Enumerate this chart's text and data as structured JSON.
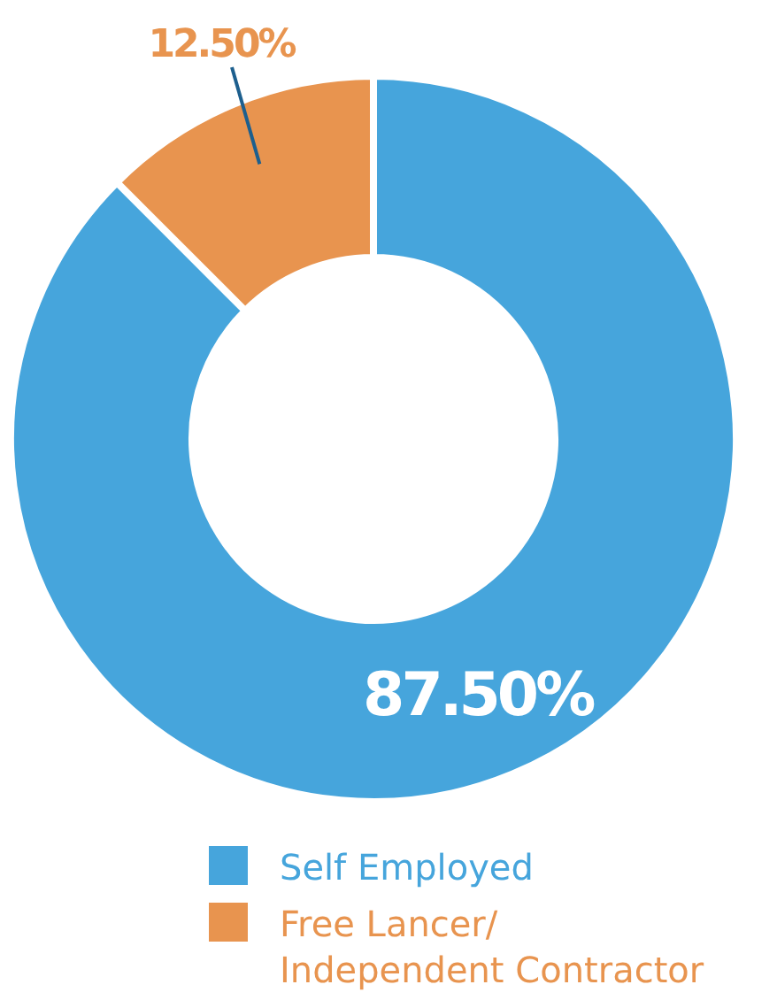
{
  "chart_data": {
    "type": "donut",
    "categories": [
      "Self Employed",
      "Free Lancer/\nIndependent Contractor"
    ],
    "values": [
      87.5,
      12.5
    ],
    "colors": [
      "#46a5dc",
      "#e8944f"
    ],
    "value_labels": [
      "87.50%",
      "12.50%"
    ],
    "legend": "bottom"
  }
}
